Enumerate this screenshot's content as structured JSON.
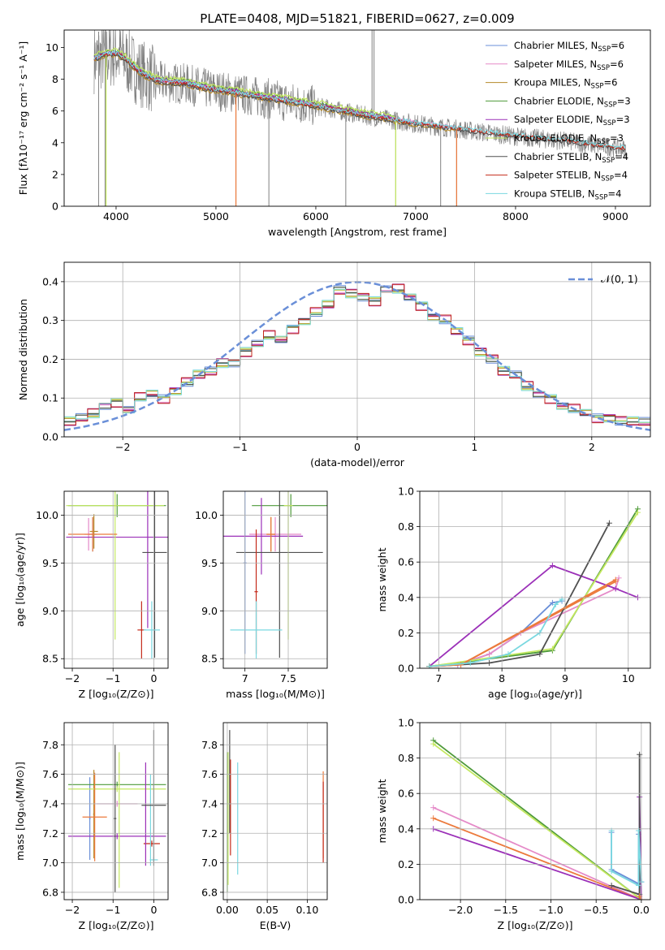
{
  "colors": {
    "Chabrier MILES": "#6a8fd8",
    "Salpeter MILES": "#e58ac8",
    "Kroupa MILES": "#b58a2a",
    "Chabrier ELODIE": "#4e9a3a",
    "Salpeter ELODIE": "#9b30b8",
    "Kroupa ELODIE": "#c4e860",
    "Chabrier STELIB": "#505050",
    "Salpeter STELIB": "#c42a1a",
    "Kroupa STELIB": "#7ad8e0",
    "data_spectrum": "#808080",
    "normal_curve": "#6a8fd8",
    "orange": "#ec7a3c",
    "grid": "#b0b0b0"
  },
  "chart_data": [
    {
      "id": "spectrum",
      "type": "line",
      "title": "PLATE=0408, MJD=51821, FIBERID=0627, z=0.009",
      "xlabel": "wavelength [Angstrom, rest frame]",
      "ylabel": "Flux [fλ10⁻¹⁷ erg cm⁻² s⁻¹ A⁻¹]",
      "xlim": [
        3480,
        9350
      ],
      "ylim": [
        0,
        11.1
      ],
      "xticks": [
        4000,
        5000,
        6000,
        7000,
        8000,
        9000
      ],
      "yticks": [
        0,
        2,
        4,
        6,
        8,
        10
      ],
      "grid": false,
      "legend_position": "top-right",
      "legend": [
        {
          "series": "Chabrier MILES",
          "label": "Chabrier MILES, N",
          "sub": "SSP",
          "suffix": "=6"
        },
        {
          "series": "Salpeter MILES",
          "label": "Salpeter MILES, N",
          "sub": "SSP",
          "suffix": "=6"
        },
        {
          "series": "Kroupa MILES",
          "label": "Kroupa MILES, N",
          "sub": "SSP",
          "suffix": "=6"
        },
        {
          "series": "Chabrier ELODIE",
          "label": "Chabrier ELODIE, N",
          "sub": "SSP",
          "suffix": "=3"
        },
        {
          "series": "Salpeter ELODIE",
          "label": "Salpeter ELODIE, N",
          "sub": "SSP",
          "suffix": "=3"
        },
        {
          "series": "Kroupa ELODIE",
          "label": "Kroupa ELODIE, N",
          "sub": "SSP",
          "suffix": "=3"
        },
        {
          "series": "Chabrier STELIB",
          "label": "Chabrier STELIB, N",
          "sub": "SSP",
          "suffix": "=4"
        },
        {
          "series": "Salpeter STELIB",
          "label": "Salpeter STELIB, N",
          "sub": "SSP",
          "suffix": "=4"
        },
        {
          "series": "Kroupa STELIB",
          "label": "Kroupa STELIB, N",
          "sub": "SSP",
          "suffix": "=4"
        }
      ],
      "continuum": {
        "x": [
          3800,
          3900,
          4000,
          4100,
          4200,
          4300,
          4400,
          4500,
          4700,
          4900,
          5200,
          5500,
          6000,
          6500,
          7000,
          7500,
          8000,
          8500,
          9100
        ],
        "y": [
          9.3,
          9.5,
          9.6,
          9.2,
          8.6,
          8.2,
          7.9,
          7.8,
          7.7,
          7.4,
          7.1,
          6.8,
          6.3,
          5.7,
          5.2,
          4.8,
          4.4,
          4.1,
          3.6
        ]
      },
      "model_offsets": [
        {
          "series": "Chabrier MILES",
          "dy": 0.0,
          "xmax": 7410
        },
        {
          "series": "Salpeter MILES",
          "dy": 0.1,
          "xmax": 7410
        },
        {
          "series": "Kroupa MILES",
          "dy": -0.1,
          "xmax": 7410
        },
        {
          "series": "Chabrier ELODIE",
          "dy": 0.2,
          "xmax": 6800
        },
        {
          "series": "Salpeter ELODIE",
          "dy": 0.15,
          "xmax": 6800
        },
        {
          "series": "Kroupa ELODIE",
          "dy": 0.3,
          "xmax": 6800
        },
        {
          "series": "Chabrier STELIB",
          "dy": -0.05,
          "xmax": 9100
        },
        {
          "series": "Salpeter STELIB",
          "dy": 0.05,
          "xmax": 9100
        },
        {
          "series": "Kroupa STELIB",
          "dy": 0.1,
          "xmax": 9100
        }
      ],
      "spikes": [
        {
          "x": 3825,
          "y0": 0,
          "y1": 11
        },
        {
          "x": 3890,
          "y0": 0,
          "y1": 11
        },
        {
          "x": 5200,
          "y0": 0,
          "y1": 7
        },
        {
          "x": 5530,
          "y0": 0,
          "y1": 6.9
        },
        {
          "x": 6300,
          "y0": 0,
          "y1": 6.2
        },
        {
          "x": 6563,
          "y0": 6,
          "y1": 11.1
        },
        {
          "x": 6583,
          "y0": 6,
          "y1": 11.1
        },
        {
          "x": 6800,
          "y0": 0,
          "y1": 5.2
        },
        {
          "x": 7250,
          "y0": 0,
          "y1": 4.9
        },
        {
          "x": 7410,
          "y0": 0,
          "y1": 4.8
        }
      ]
    },
    {
      "id": "residuals",
      "type": "histogram",
      "xlabel": "(data-model)/error",
      "ylabel": "Normed distribution",
      "xlim": [
        -2.5,
        2.5
      ],
      "ylim": [
        0,
        0.45
      ],
      "xticks": [
        -2,
        -1,
        0,
        1,
        2
      ],
      "yticks": [
        0.0,
        0.1,
        0.2,
        0.3,
        0.4
      ],
      "grid": true,
      "legend_position": "top-right",
      "legend": [
        {
          "label": "𝒩(0, 1)",
          "series": "normal_curve",
          "dash": true
        }
      ],
      "bin_edges_start": -2.5,
      "bin_width": 0.1,
      "counts": [
        0.04,
        0.05,
        0.06,
        0.08,
        0.09,
        0.07,
        0.1,
        0.11,
        0.1,
        0.12,
        0.14,
        0.16,
        0.17,
        0.19,
        0.19,
        0.22,
        0.24,
        0.26,
        0.25,
        0.28,
        0.3,
        0.32,
        0.34,
        0.38,
        0.37,
        0.36,
        0.35,
        0.38,
        0.38,
        0.36,
        0.34,
        0.31,
        0.3,
        0.27,
        0.25,
        0.22,
        0.2,
        0.17,
        0.16,
        0.13,
        0.11,
        0.1,
        0.08,
        0.07,
        0.06,
        0.05,
        0.05,
        0.04,
        0.04,
        0.04
      ],
      "series_perturb": [
        0.01,
        -0.012,
        0.008,
        -0.006,
        0.014,
        -0.01,
        0.006,
        -0.014,
        0.012
      ]
    },
    {
      "id": "age_vs_Z",
      "type": "scatter",
      "xlabel": "Z [log₁₀(Z/Z⊙)]",
      "ylabel": "age  [log₁₀(age/yr)]",
      "xlim": [
        -2.2,
        0.35
      ],
      "ylim": [
        8.4,
        10.25
      ],
      "xticks": [
        -2,
        -1,
        0
      ],
      "yticks": [
        8.5,
        9.0,
        9.5,
        10.0
      ],
      "grid": true,
      "errorbars": [
        {
          "series": "Chabrier MILES",
          "x": -1.5,
          "xerr": 0.1,
          "y": 9.8,
          "yerr": 0.18
        },
        {
          "series": "Salpeter MILES",
          "x": -1.6,
          "xerr": 0.1,
          "y": 9.8,
          "yerr": 0.17
        },
        {
          "series": "Kroupa MILES",
          "x": -1.47,
          "xerr": 0.1,
          "y": 9.83,
          "yerr": 0.18
        },
        {
          "series": "Chabrier ELODIE",
          "x": -0.9,
          "xerr": 1.2,
          "y": 10.1,
          "yerr": 0.12
        },
        {
          "series": "Salpeter ELODIE",
          "x": -0.15,
          "xerr": 2.0,
          "y": 9.77,
          "yerr": 0.95
        },
        {
          "series": "Kroupa ELODIE",
          "x": -0.95,
          "xerr": 1.2,
          "y": 10.1,
          "yerr": 1.4
        },
        {
          "series": "Chabrier STELIB",
          "x": 0.02,
          "xerr": 0.3,
          "y": 9.61,
          "yerr": 1.1
        },
        {
          "series": "Salpeter STELIB",
          "x": -0.3,
          "xerr": 0.1,
          "y": 8.8,
          "yerr": 0.3
        },
        {
          "series": "Kroupa STELIB",
          "x": -0.05,
          "xerr": 0.2,
          "y": 8.8,
          "yerr": 0.3
        }
      ],
      "orange_bars": [
        {
          "x": -1.5,
          "xerr": 0.6,
          "y": 9.8,
          "yerr": 0.18
        }
      ]
    },
    {
      "id": "age_vs_mass",
      "type": "scatter",
      "xlabel": "mass [log₁₀(M/M⊙)]",
      "ylabel": "",
      "xlim": [
        6.75,
        7.95
      ],
      "ylim": [
        8.4,
        10.25
      ],
      "xticks": [
        7.0,
        7.5
      ],
      "yticks": [
        8.5,
        9.0,
        9.5,
        10.0
      ],
      "grid": true,
      "errorbars": [
        {
          "series": "Chabrier MILES",
          "x": 7.0,
          "xerr": 0.02,
          "y": 9.5,
          "yerr": 0.95
        },
        {
          "series": "Salpeter MILES",
          "x": 7.35,
          "xerr": 0.3,
          "y": 9.8,
          "yerr": 0.18
        },
        {
          "series": "Kroupa MILES",
          "x": 7.3,
          "xerr": 0.05,
          "y": 9.8,
          "yerr": 0.18
        },
        {
          "series": "Chabrier ELODIE",
          "x": 7.53,
          "xerr": 0.45,
          "y": 10.1,
          "yerr": 0.12
        },
        {
          "series": "Salpeter ELODIE",
          "x": 7.19,
          "xerr": 0.48,
          "y": 9.78,
          "yerr": 0.4
        },
        {
          "series": "Kroupa ELODIE",
          "x": 7.5,
          "xerr": 0.05,
          "y": 10.1,
          "yerr": 1.4
        },
        {
          "series": "Chabrier STELIB",
          "x": 7.4,
          "xerr": 0.5,
          "y": 9.61,
          "yerr": 1.1
        },
        {
          "series": "Salpeter STELIB",
          "x": 7.13,
          "xerr": 0.02,
          "y": 9.2,
          "yerr": 0.65
        },
        {
          "series": "Kroupa STELIB",
          "x": 7.13,
          "xerr": 0.3,
          "y": 8.8,
          "yerr": 0.3
        }
      ],
      "orange_bars": [
        {
          "x": 7.3,
          "xerr": 0.05,
          "y": 9.8,
          "yerr": 0.18
        }
      ]
    },
    {
      "id": "cumulative_age",
      "type": "line",
      "xlabel": "age  [log₁₀(age/yr)]",
      "ylabel": "mass weight",
      "xlim": [
        6.7,
        10.35
      ],
      "ylim": [
        0,
        1.0
      ],
      "xticks": [
        7,
        8,
        9,
        10
      ],
      "yticks": [
        0.0,
        0.2,
        0.4,
        0.6,
        0.8,
        1.0
      ],
      "grid": true,
      "series": [
        {
          "name": "Chabrier MILES",
          "x": [
            6.85,
            7.3,
            7.8,
            8.3,
            8.8,
            8.95
          ],
          "y": [
            0.01,
            0.02,
            0.08,
            0.2,
            0.37,
            0.38
          ]
        },
        {
          "name": "Salpeter MILES",
          "x": [
            6.85,
            7.3,
            7.8,
            8.3,
            9.8,
            9.85
          ],
          "y": [
            0.01,
            0.02,
            0.08,
            0.2,
            0.45,
            0.51
          ]
        },
        {
          "name": "Kroupa MILES",
          "x": [
            6.85,
            7.35,
            9.8
          ],
          "y": [
            0.01,
            0.02,
            0.49
          ]
        },
        {
          "name": "Chabrier ELODIE",
          "x": [
            6.85,
            8.8,
            10.15
          ],
          "y": [
            0.01,
            0.1,
            0.9
          ]
        },
        {
          "name": "Salpeter ELODIE",
          "x": [
            6.85,
            8.8,
            9.8,
            10.15
          ],
          "y": [
            0.01,
            0.58,
            0.45,
            0.4
          ]
        },
        {
          "name": "Kroupa ELODIE",
          "x": [
            6.85,
            8.8,
            10.15
          ],
          "y": [
            0.01,
            0.11,
            0.88
          ]
        },
        {
          "name": "Chabrier STELIB",
          "x": [
            6.85,
            7.8,
            8.6,
            9.7
          ],
          "y": [
            0.01,
            0.03,
            0.08,
            0.82
          ]
        },
        {
          "name": "Salpeter STELIB",
          "x": [
            6.85,
            7.35,
            9.8
          ],
          "y": [
            0.01,
            0.02,
            0.5
          ]
        },
        {
          "name": "Kroupa STELIB",
          "x": [
            6.85,
            7.5,
            8.1,
            8.6,
            8.85,
            8.95
          ],
          "y": [
            0.01,
            0.03,
            0.08,
            0.2,
            0.36,
            0.39
          ]
        }
      ]
    },
    {
      "id": "mass_vs_Z",
      "type": "scatter",
      "xlabel": "Z [log₁₀(Z/Z⊙)]",
      "ylabel": "mass [log₁₀(M/M⊙)]",
      "xlim": [
        -2.2,
        0.35
      ],
      "ylim": [
        6.75,
        7.95
      ],
      "xticks": [
        -2,
        -1,
        0
      ],
      "yticks": [
        6.8,
        7.0,
        7.2,
        7.4,
        7.6,
        7.8
      ],
      "grid": true,
      "errorbars": [
        {
          "series": "Chabrier MILES",
          "x": -1.57,
          "xerr": 0.02,
          "y": 7.3,
          "yerr": 0.28
        },
        {
          "series": "Salpeter MILES",
          "x": -0.9,
          "xerr": 0.5,
          "y": 7.4,
          "yerr": 0.02
        },
        {
          "series": "Kroupa MILES",
          "x": -1.47,
          "xerr": 0.02,
          "y": 7.33,
          "yerr": 0.3
        },
        {
          "series": "Chabrier ELODIE",
          "x": -0.9,
          "xerr": 1.2,
          "y": 7.53,
          "yerr": 0.02
        },
        {
          "series": "Salpeter ELODIE",
          "x": -0.9,
          "xerr": 1.2,
          "y": 7.18,
          "yerr": 0.02
        },
        {
          "series": "Kroupa ELODIE",
          "x": -0.9,
          "xerr": 1.2,
          "y": 7.5,
          "yerr": 0.02
        },
        {
          "series": "Chabrier STELIB",
          "x": -0.95,
          "xerr": 0.03,
          "y": 7.3,
          "yerr": 0.5
        },
        {
          "series": "Salpeter STELIB",
          "x": -0.05,
          "xerr": 0.2,
          "y": 7.13,
          "yerr": 0.02
        },
        {
          "series": "Kroupa STELIB",
          "x": 0.0,
          "xerr": 0.1,
          "y": 7.02,
          "yerr": 0.02
        }
      ],
      "extra_vlines": [
        {
          "series": "Kroupa ELODIE",
          "x": -0.85,
          "y0": 6.83,
          "y1": 7.75
        },
        {
          "series": "Salpeter ELODIE",
          "x": -0.2,
          "y0": 6.98,
          "y1": 7.68
        },
        {
          "series": "Chabrier STELIB",
          "x": 0.0,
          "y0": 6.98,
          "y1": 7.9
        },
        {
          "series": "Kroupa STELIB",
          "x": -0.08,
          "y0": 6.98,
          "y1": 7.6
        },
        {
          "series": "Chabrier STELIB",
          "x": 0.0,
          "y0": 7.39,
          "y1": 7.39,
          "h": true,
          "x0": -0.3,
          "x1": 0.3
        }
      ],
      "orange_bars": [
        {
          "x": -1.45,
          "xerr": 0.3,
          "y": 7.31,
          "yerr": 0.3
        }
      ]
    },
    {
      "id": "mass_vs_ebv",
      "type": "scatter",
      "xlabel": "E(B-V)",
      "ylabel": "",
      "xlim": [
        -0.005,
        0.125
      ],
      "ylim": [
        6.75,
        7.95
      ],
      "xticks": [
        0.0,
        0.05,
        0.1
      ],
      "xticklabels": [
        "0.00",
        "0.05",
        "0.10"
      ],
      "yticks": [
        6.8,
        7.0,
        7.2,
        7.4,
        7.6,
        7.8
      ],
      "grid": true,
      "vlines": [
        {
          "series": "Chabrier ELODIE",
          "x": 0.0,
          "y0": 6.8,
          "y1": 7.75
        },
        {
          "series": "Kroupa ELODIE",
          "x": 0.001,
          "y0": 6.85,
          "y1": 7.75
        },
        {
          "series": "Chabrier STELIB",
          "x": 0.003,
          "y0": 7.2,
          "y1": 7.9
        },
        {
          "series": "Salpeter STELIB",
          "x": 0.004,
          "y0": 7.05,
          "y1": 7.7
        },
        {
          "series": "Kroupa STELIB",
          "x": 0.013,
          "y0": 6.92,
          "y1": 7.68
        },
        {
          "series": "orange",
          "x": 0.12,
          "y0": 7.03,
          "y1": 7.62
        },
        {
          "series": "Salpeter STELIB",
          "x": 0.12,
          "y0": 7.0,
          "y1": 7.55
        }
      ]
    },
    {
      "id": "cumulative_Z",
      "type": "line",
      "xlabel": "Z [log₁₀(Z/Z⊙)]",
      "ylabel": "mass weight",
      "xlim": [
        -2.45,
        0.1
      ],
      "ylim": [
        0,
        1.0
      ],
      "xticks": [
        -2.0,
        -1.5,
        -1.0,
        -0.5,
        0.0
      ],
      "xticklabels": [
        "−2.0",
        "−1.5",
        "−1.0",
        "−0.5",
        "0.0"
      ],
      "yticks": [
        0.0,
        0.2,
        0.4,
        0.6,
        0.8,
        1.0
      ],
      "grid": true,
      "series": [
        {
          "name": "Chabrier MILES",
          "x": [
            -0.33,
            -0.33,
            -0.03,
            -0.03,
            0.0
          ],
          "y": [
            0.38,
            0.17,
            0.09,
            0.37,
            0.1
          ]
        },
        {
          "name": "Salpeter MILES",
          "x": [
            -2.3,
            0.0
          ],
          "y": [
            0.52,
            0.0
          ]
        },
        {
          "name": "Kroupa MILES",
          "x": [
            -2.3,
            0.0
          ],
          "y": [
            0.46,
            0.0
          ]
        },
        {
          "name": "Chabrier ELODIE",
          "x": [
            -2.3,
            0.0
          ],
          "y": [
            0.9,
            0.0
          ]
        },
        {
          "name": "Salpeter ELODIE",
          "x": [
            -2.3,
            0.0,
            -0.02,
            -0.02
          ],
          "y": [
            0.4,
            0.0,
            0.58,
            0.0
          ]
        },
        {
          "name": "Kroupa ELODIE",
          "x": [
            -2.3,
            0.0
          ],
          "y": [
            0.88,
            0.0
          ]
        },
        {
          "name": "Chabrier STELIB",
          "x": [
            -0.33,
            -0.02,
            -0.02,
            -0.02
          ],
          "y": [
            0.08,
            0.03,
            0.82,
            0.0
          ]
        },
        {
          "name": "Salpeter STELIB",
          "x": [
            -0.02,
            0.0
          ],
          "y": [
            0.02,
            0.0
          ]
        },
        {
          "name": "Kroupa STELIB",
          "x": [
            -0.33,
            -0.33,
            -0.03,
            -0.03,
            0.0
          ],
          "y": [
            0.39,
            0.16,
            0.08,
            0.39,
            0.1
          ]
        }
      ]
    }
  ]
}
